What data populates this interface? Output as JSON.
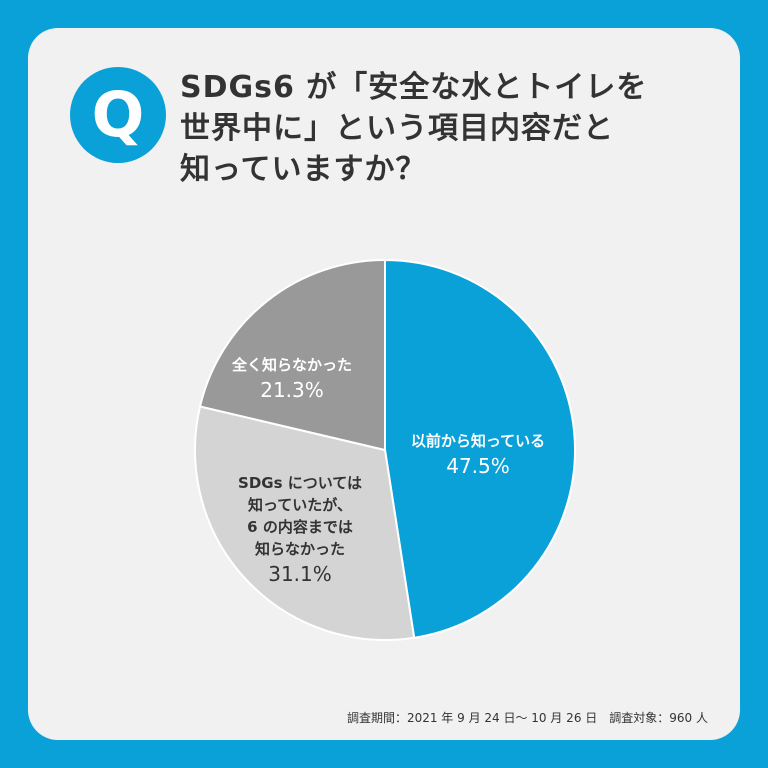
{
  "chart_data": {
    "type": "pie",
    "badge": "Q",
    "title_lines": [
      "SDGs6 が「安全な水とトイレを",
      "世界中に」という項目内容だと",
      "知っていますか？"
    ],
    "categories": [
      "以前から知っている",
      "SDGs については\n知っていたが、\n6 の内容までは\n知らなかった",
      "全く知らなかった"
    ],
    "values": [
      47.5,
      31.1,
      21.3
    ],
    "value_labels": [
      "47.5%",
      "31.1%",
      "21.3%"
    ],
    "colors": [
      "#0aa0d8",
      "#d4d4d4",
      "#999999"
    ],
    "note": "調査期間：2021 年 9 月 24 日〜 10 月 26 日　調査対象：960 人"
  }
}
